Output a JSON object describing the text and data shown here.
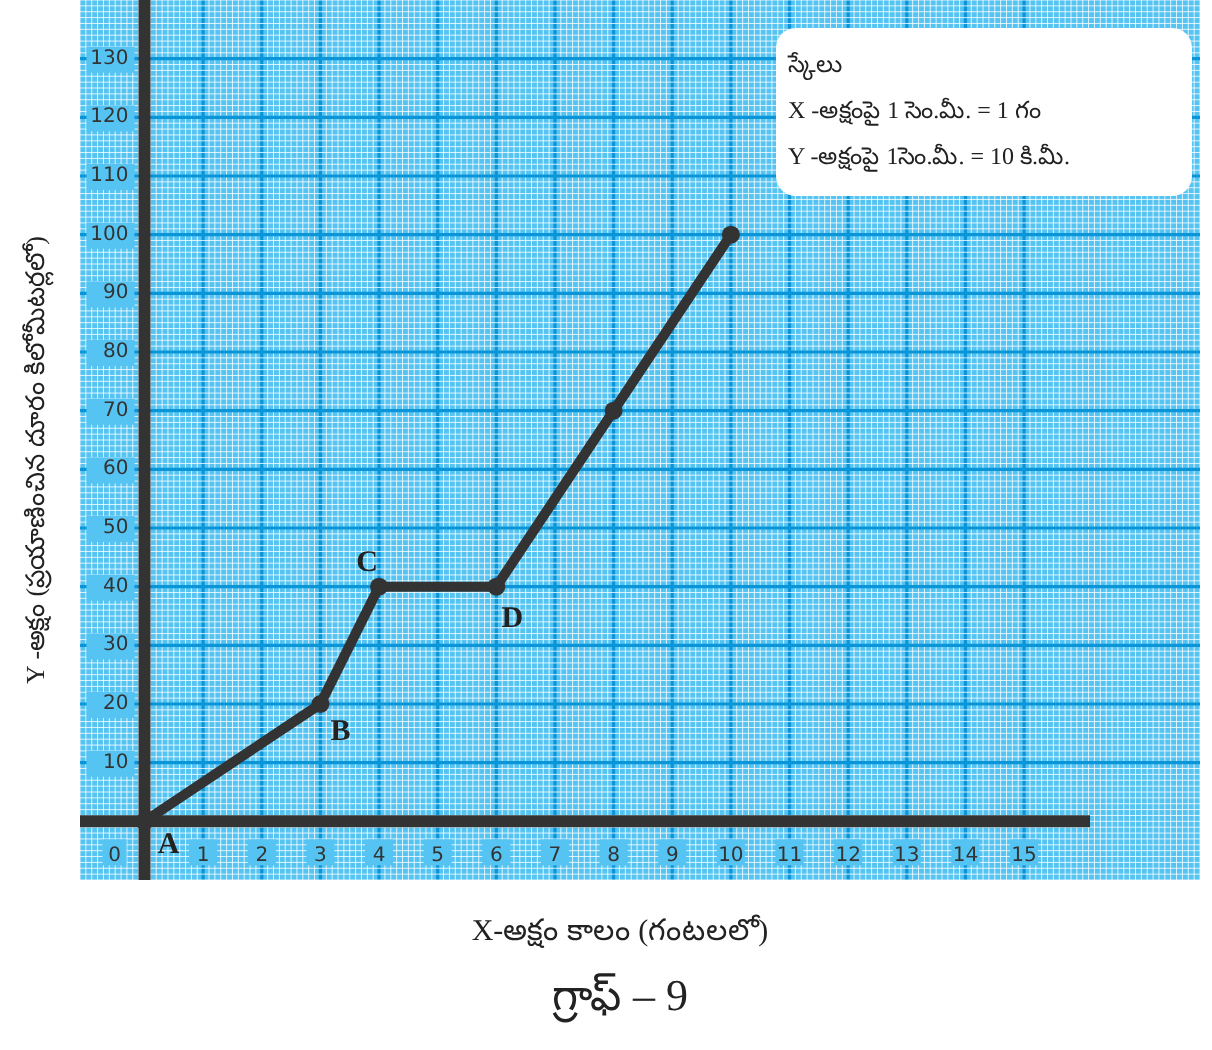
{
  "chart_data": {
    "type": "line",
    "title": "గ్రాఫ్ – 9",
    "xlabel": "X-అక్షం కాలం (గంటలలో)",
    "ylabel": "Y -అక్షం (ప్రయాణించిన దూరం కిలోమీటర్లలో)",
    "x": [
      0,
      3,
      4,
      6,
      8,
      10
    ],
    "series": [
      {
        "color": "#333333",
        "values": [
          0,
          20,
          40,
          40,
          70,
          100
        ]
      }
    ],
    "xlim": [
      -1.1,
      18
    ],
    "ylim": [
      -10,
      140
    ],
    "xticks": [
      1,
      2,
      3,
      4,
      5,
      6,
      7,
      8,
      9,
      10,
      11,
      12,
      13,
      14,
      15
    ],
    "yticks": [
      10,
      20,
      30,
      40,
      50,
      60,
      70,
      80,
      90,
      100,
      110,
      120,
      130
    ],
    "grid": true,
    "marker": "circle",
    "line_style": "solid",
    "annotations": [
      "స్కేలు",
      "X -అక్షంపై 1 సెం.మీ. = 1 గం",
      "Y -అక్షంపై 1సెం.మీ. = 10 కి.మీ.",
      {
        "text": "0",
        "x": 0,
        "y": 0
      },
      {
        "text": "A",
        "x": 0,
        "y": 0
      },
      {
        "text": "B",
        "x": 3,
        "y": 20
      },
      {
        "text": "C",
        "x": 4,
        "y": 40
      },
      {
        "text": "D",
        "x": 6,
        "y": 40
      }
    ]
  }
}
